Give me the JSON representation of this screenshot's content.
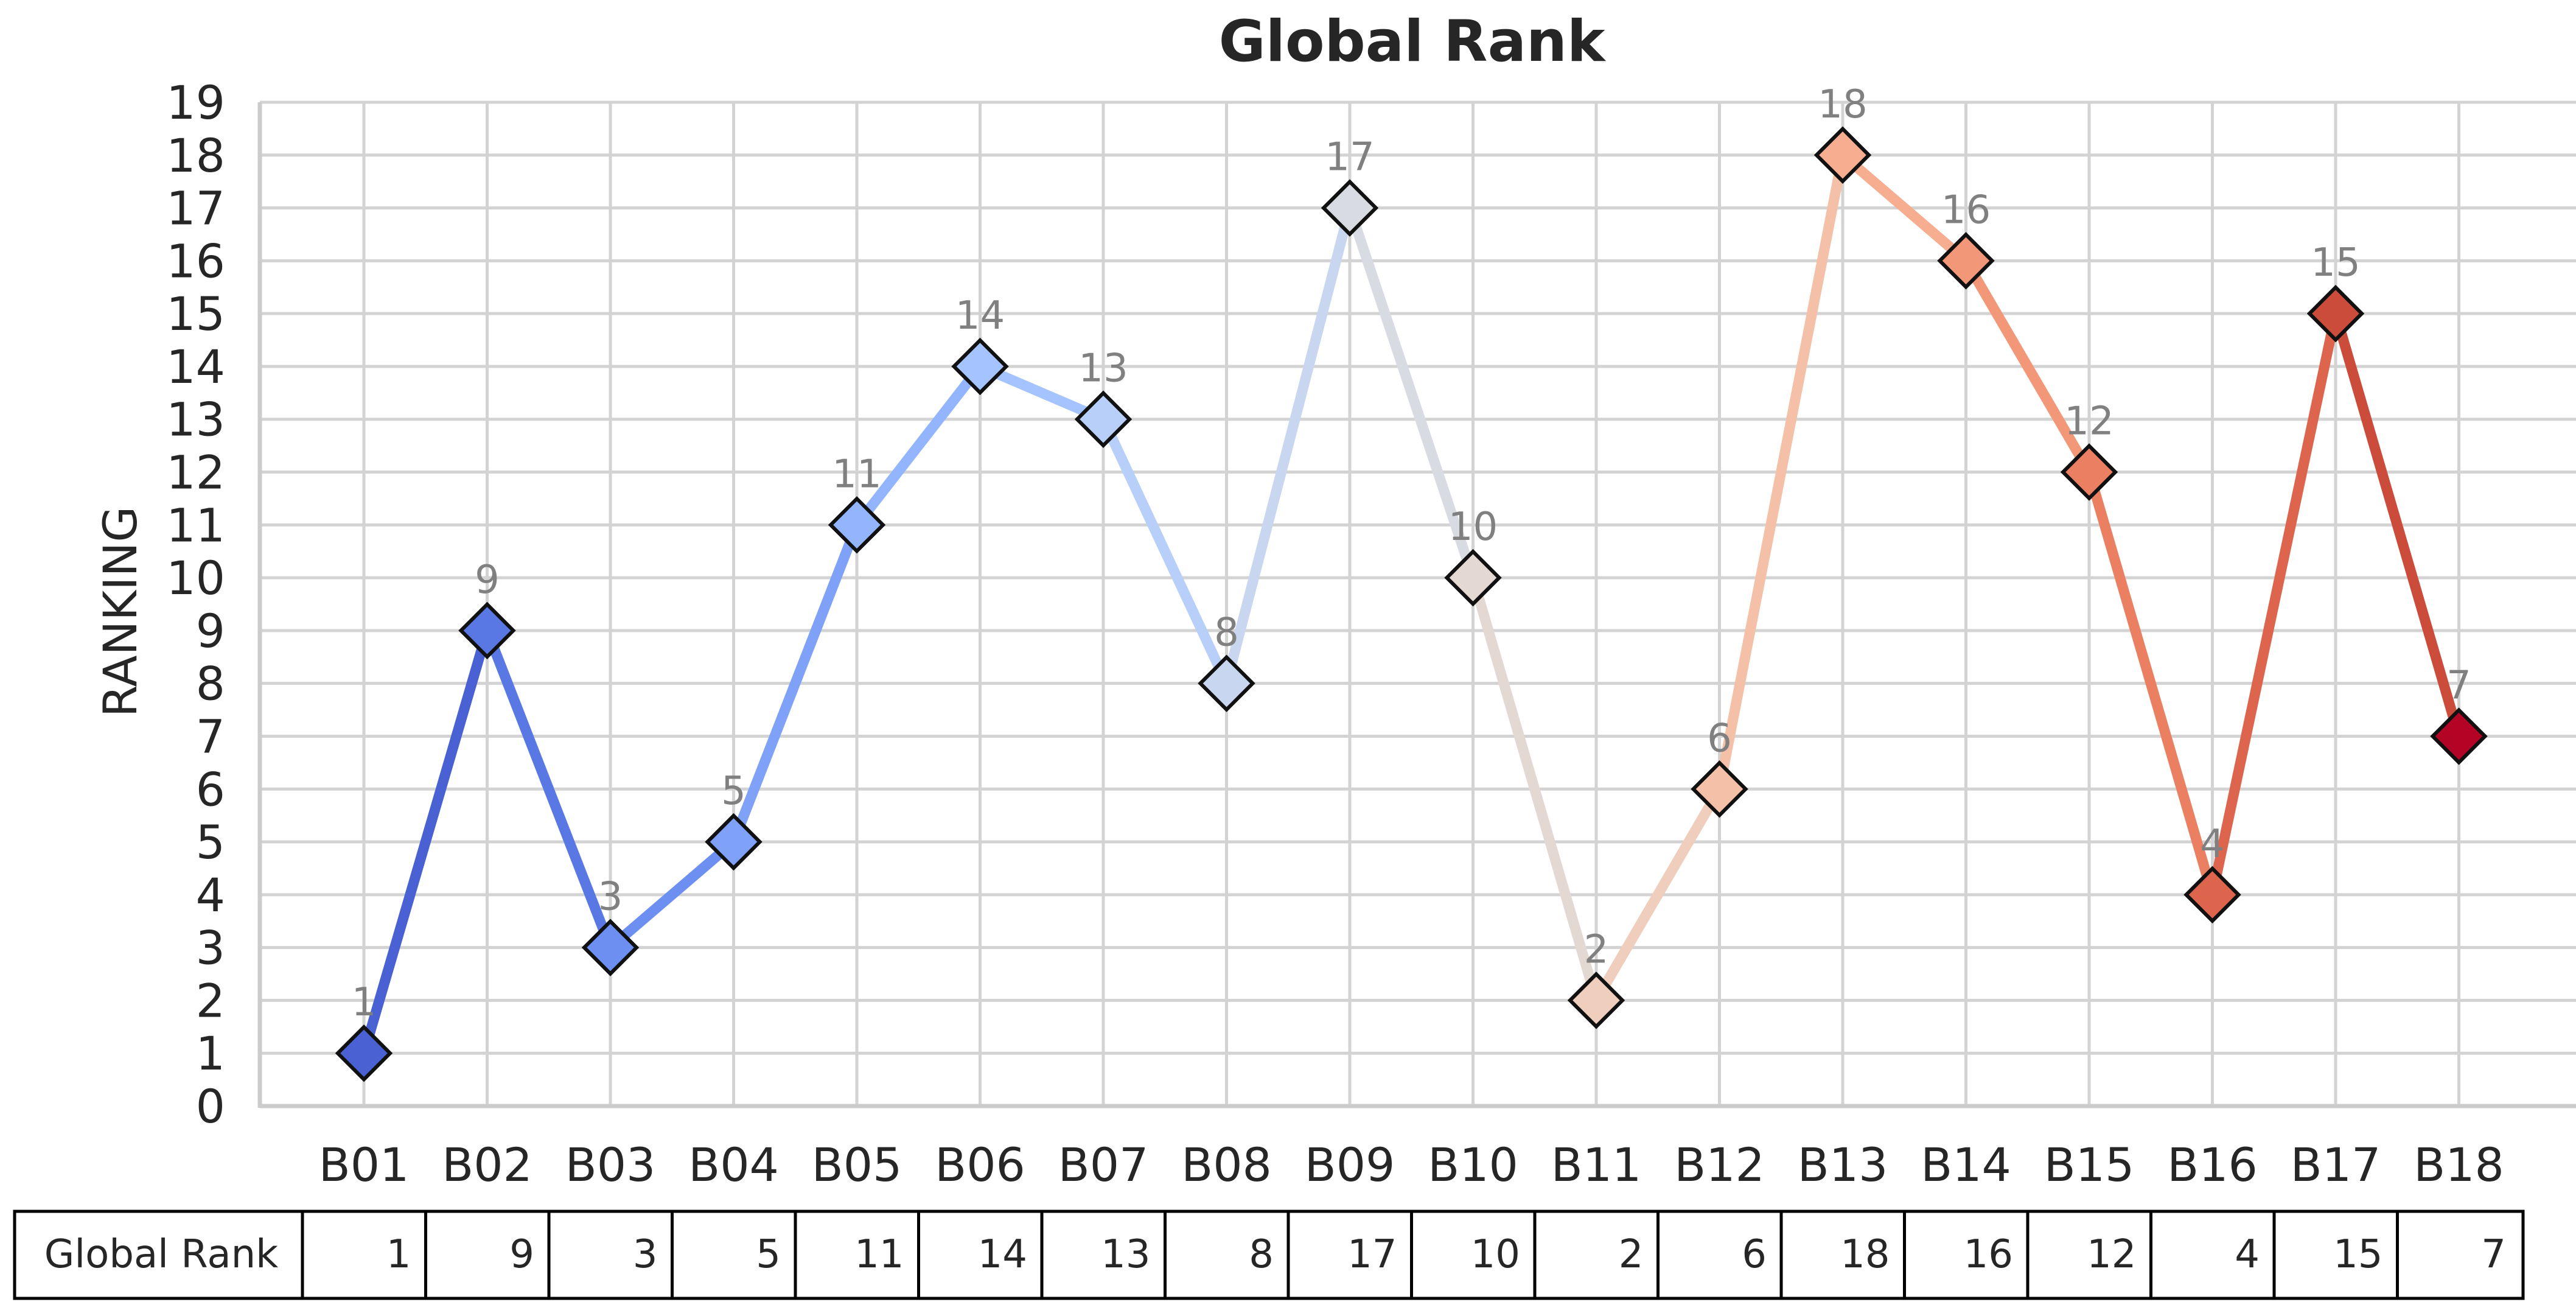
{
  "chart_data": {
    "type": "line",
    "title": "Global Rank",
    "xlabel": "",
    "ylabel": "RANKING",
    "ylim": [
      0,
      19
    ],
    "yticks": [
      0,
      1,
      2,
      3,
      4,
      5,
      6,
      7,
      8,
      9,
      10,
      11,
      12,
      13,
      14,
      15,
      16,
      17,
      18,
      19
    ],
    "grid": true,
    "marker": "diamond",
    "categories": [
      "B01",
      "B02",
      "B03",
      "B04",
      "B05",
      "B06",
      "B07",
      "B08",
      "B09",
      "B10",
      "B11",
      "B12",
      "B13",
      "B14",
      "B15",
      "B16",
      "B17",
      "B18"
    ],
    "series": [
      {
        "name": "Global Rank",
        "values": [
          1,
          9,
          3,
          5,
          11,
          14,
          13,
          8,
          17,
          10,
          2,
          6,
          18,
          16,
          12,
          4,
          15,
          7
        ]
      }
    ],
    "colors": [
      "#4961d2",
      "#5a78e4",
      "#6c8ff1",
      "#7fa1f7",
      "#93b5fe",
      "#a5c3fe",
      "#b7cff9",
      "#c8d7ef",
      "#d8dce2",
      "#e4d9d2",
      "#efcebd",
      "#f4c0a7",
      "#f7ad90",
      "#f39779",
      "#ea7f61",
      "#dd654e",
      "#cc4c3c",
      "#b40426"
    ],
    "table": {
      "row_label": "Global Rank",
      "values": [
        "1",
        "9",
        "3",
        "5",
        "11",
        "14",
        "13",
        "8",
        "17",
        "10",
        "2",
        "6",
        "18",
        "16",
        "12",
        "4",
        "15",
        "7"
      ]
    }
  }
}
